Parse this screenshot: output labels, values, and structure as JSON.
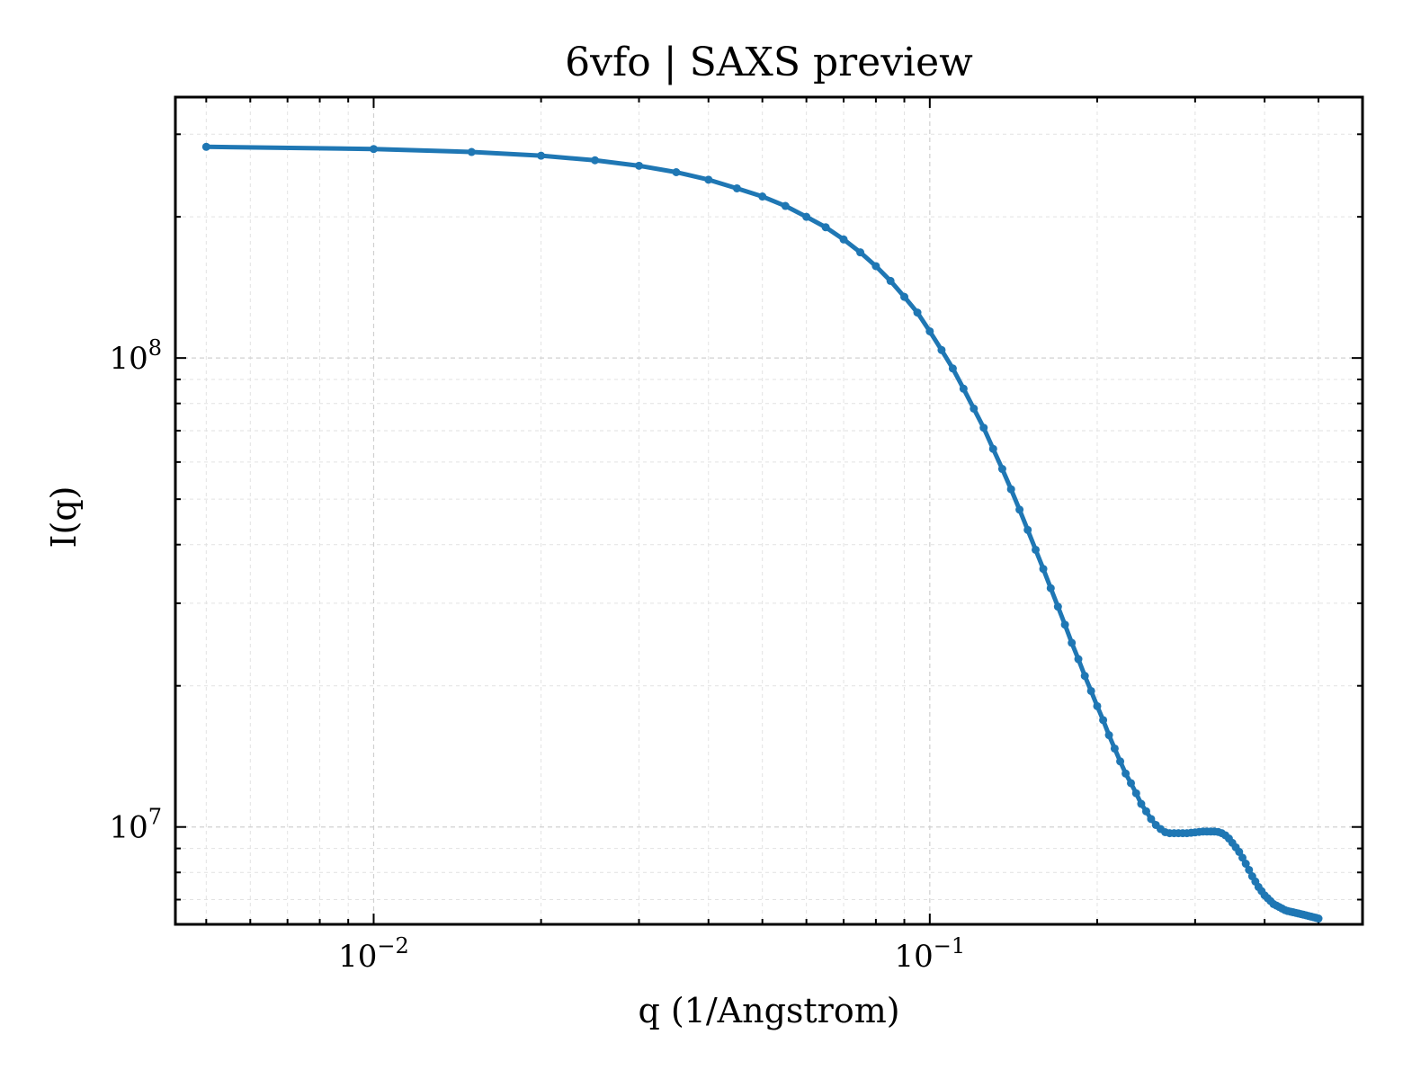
{
  "chart_data": {
    "type": "line",
    "title": "6vfo | SAXS preview",
    "xlabel": "q (1/Angstrom)",
    "ylabel": "I(q)",
    "xscale": "log",
    "yscale": "log",
    "xlim": [
      0.0044,
      0.6
    ],
    "ylim": [
      6200000,
      360000000
    ],
    "grid": true,
    "legend": "none",
    "xticks": [
      {
        "base": "10",
        "exp": "−2",
        "value": 0.01
      },
      {
        "base": "10",
        "exp": "−1",
        "value": 0.1
      }
    ],
    "yticks": [
      {
        "base": "10",
        "exp": "7",
        "value": 10000000
      },
      {
        "base": "10",
        "exp": "8",
        "value": 100000000
      }
    ],
    "color": "#1f77b4",
    "series": [
      {
        "x": [
          0.005,
          0.01,
          0.015,
          0.02,
          0.025,
          0.03,
          0.035,
          0.04,
          0.045,
          0.05,
          0.055,
          0.06,
          0.065,
          0.07,
          0.075,
          0.08,
          0.085,
          0.09,
          0.095,
          0.1,
          0.105,
          0.11,
          0.115,
          0.12,
          0.125,
          0.13,
          0.135,
          0.14,
          0.145,
          0.15,
          0.155,
          0.16,
          0.165,
          0.17,
          0.175,
          0.18,
          0.185,
          0.19,
          0.195,
          0.2,
          0.205,
          0.21,
          0.215,
          0.22,
          0.225,
          0.23,
          0.235,
          0.24,
          0.245,
          0.25,
          0.255,
          0.26,
          0.265,
          0.27,
          0.275,
          0.28,
          0.285,
          0.29,
          0.295,
          0.3,
          0.305,
          0.31,
          0.315,
          0.32,
          0.325,
          0.33,
          0.335,
          0.34,
          0.345,
          0.35,
          0.355,
          0.36,
          0.365,
          0.37,
          0.375,
          0.38,
          0.385,
          0.39,
          0.395,
          0.4,
          0.405,
          0.41,
          0.415,
          0.42,
          0.425,
          0.43,
          0.435,
          0.44,
          0.445,
          0.45,
          0.455,
          0.46,
          0.465,
          0.47,
          0.475,
          0.48,
          0.485,
          0.49,
          0.495,
          0.5
        ],
        "y": [
          282000000,
          279000000,
          275000000,
          270000000,
          264000000,
          257000000,
          249000000,
          240000000,
          230000000,
          221000000,
          211000000,
          200000000,
          190000000,
          179000000,
          168000000,
          157000000,
          146000000,
          135000000,
          125000000,
          114000000,
          104000000,
          95000000,
          86000000,
          78000000,
          71000000,
          64000000,
          58000000,
          52500000,
          47500000,
          43000000,
          39000000,
          35500000,
          32300000,
          29500000,
          27000000,
          24700000,
          22800000,
          21000000,
          19500000,
          18100000,
          16900000,
          15700000,
          14700000,
          13800000,
          13000000,
          12400000,
          11800000,
          11200000,
          10800000,
          10400000,
          10100000,
          9900000,
          9750000,
          9700000,
          9700000,
          9700000,
          9700000,
          9700000,
          9720000,
          9740000,
          9760000,
          9780000,
          9780000,
          9780000,
          9780000,
          9760000,
          9700000,
          9600000,
          9450000,
          9250000,
          9050000,
          8850000,
          8600000,
          8350000,
          8100000,
          7850000,
          7650000,
          7450000,
          7300000,
          7150000,
          7050000,
          6950000,
          6850000,
          6800000,
          6750000,
          6700000,
          6650000,
          6620000,
          6600000,
          6580000,
          6560000,
          6540000,
          6520000,
          6500000,
          6480000,
          6460000,
          6440000,
          6420000,
          6400000,
          6380000
        ]
      }
    ]
  }
}
